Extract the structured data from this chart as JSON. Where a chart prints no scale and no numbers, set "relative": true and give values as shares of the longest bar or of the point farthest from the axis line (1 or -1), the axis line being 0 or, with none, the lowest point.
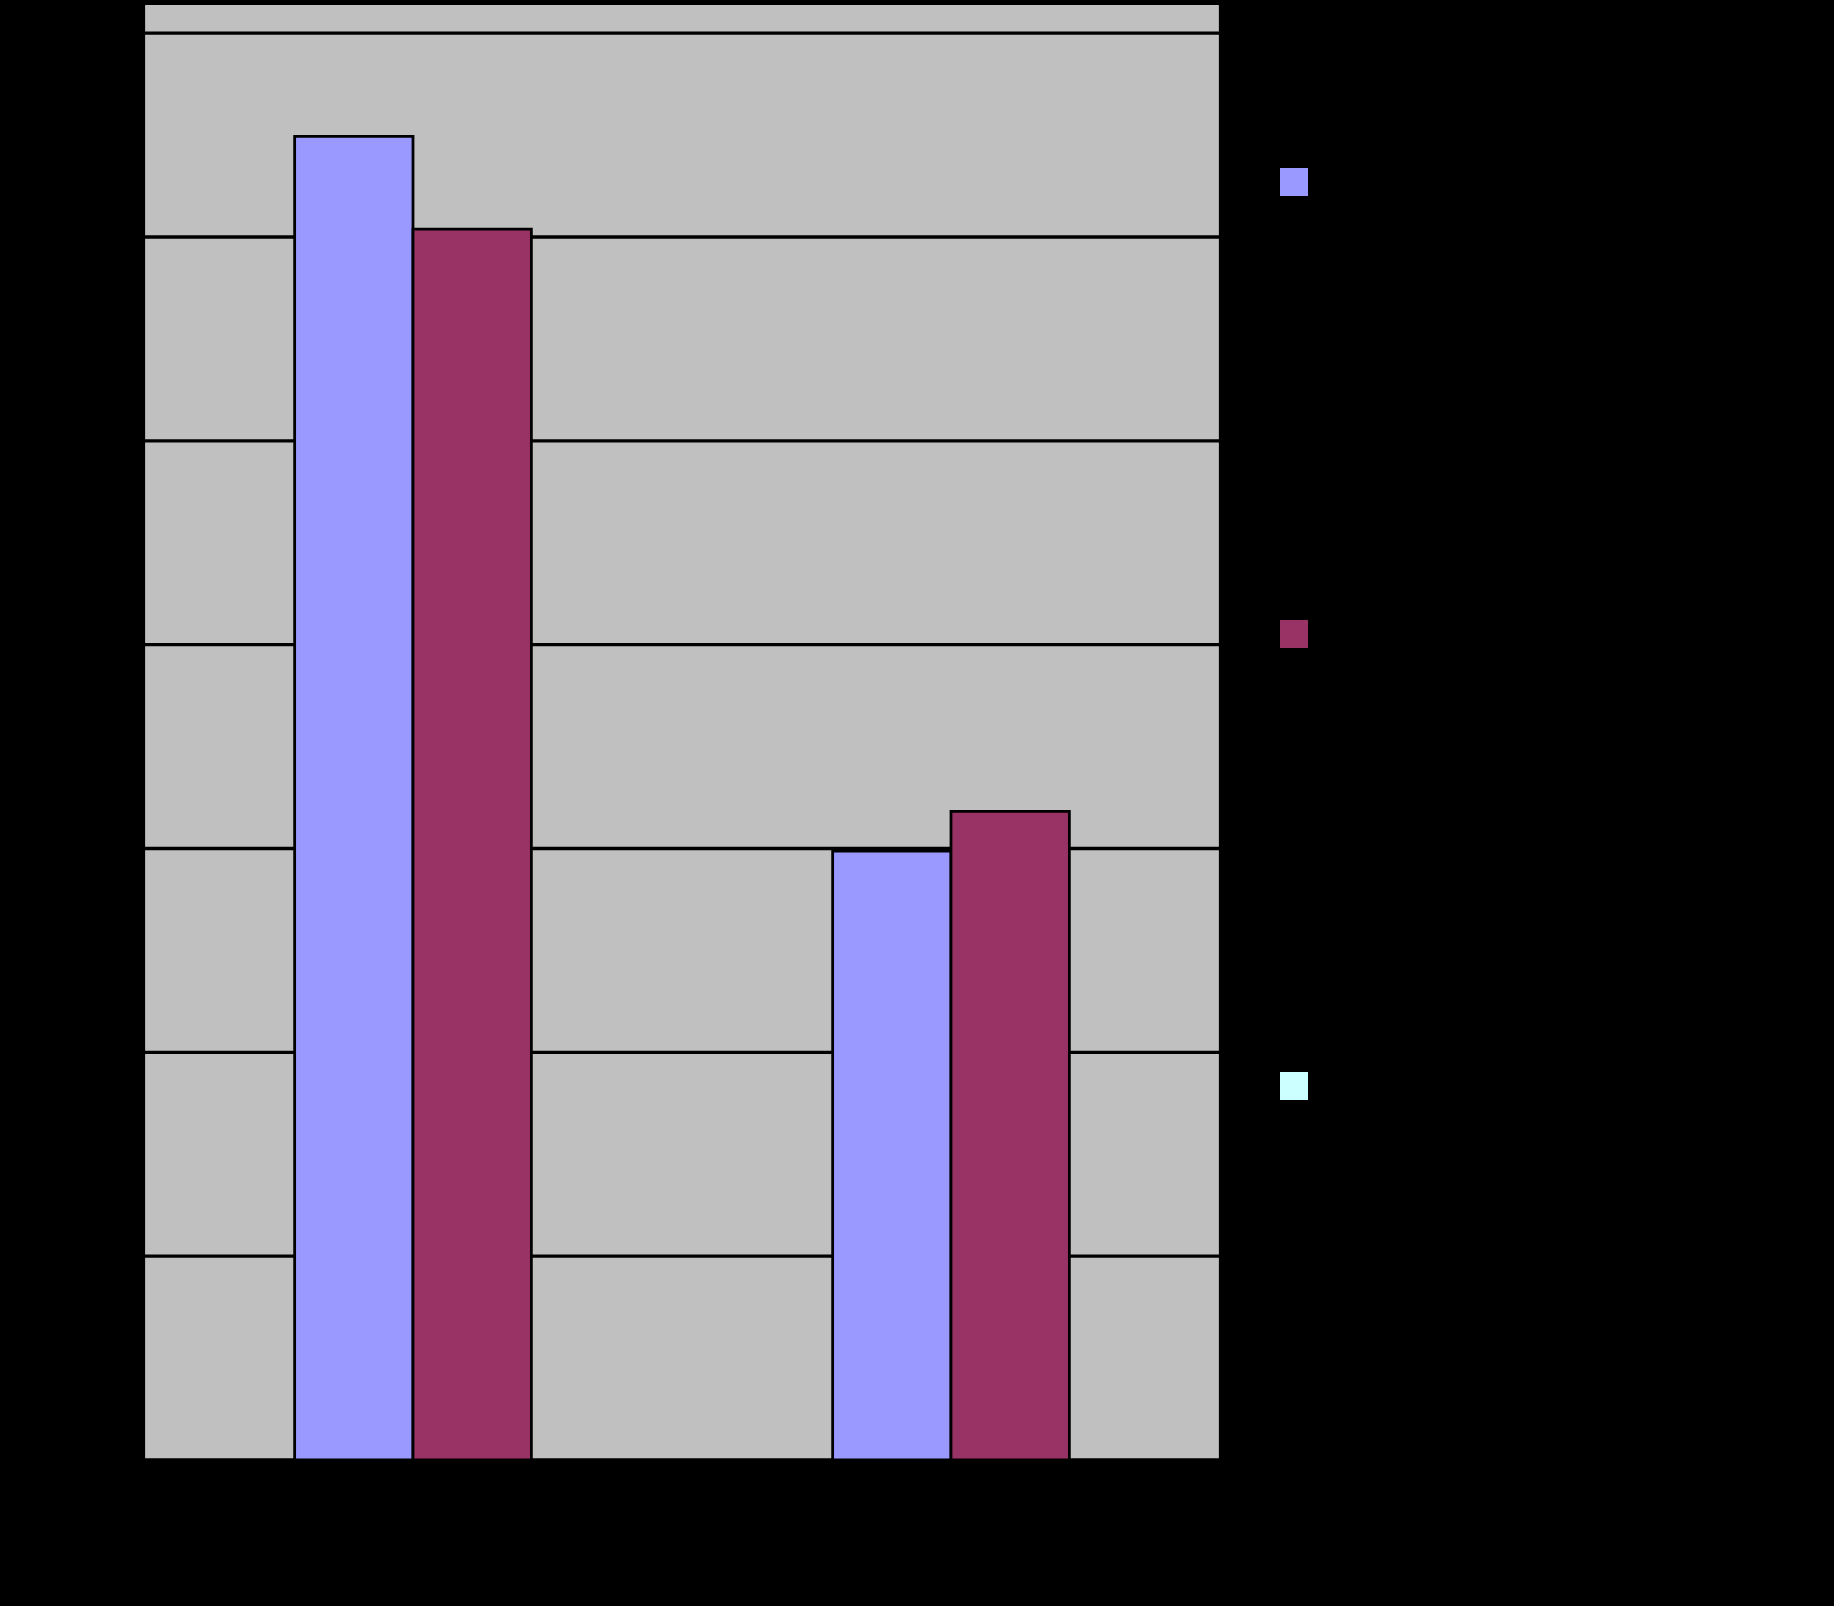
{
  "chart_data": {
    "type": "bar",
    "relative": true,
    "categories": [
      null,
      null
    ],
    "grid": "y",
    "series": [
      {
        "color": "#9999ff",
        "values": [
          1,
          0.46
        ]
      },
      {
        "color": "#993366",
        "values": [
          0.93,
          0.49
        ]
      }
    ]
  }
}
